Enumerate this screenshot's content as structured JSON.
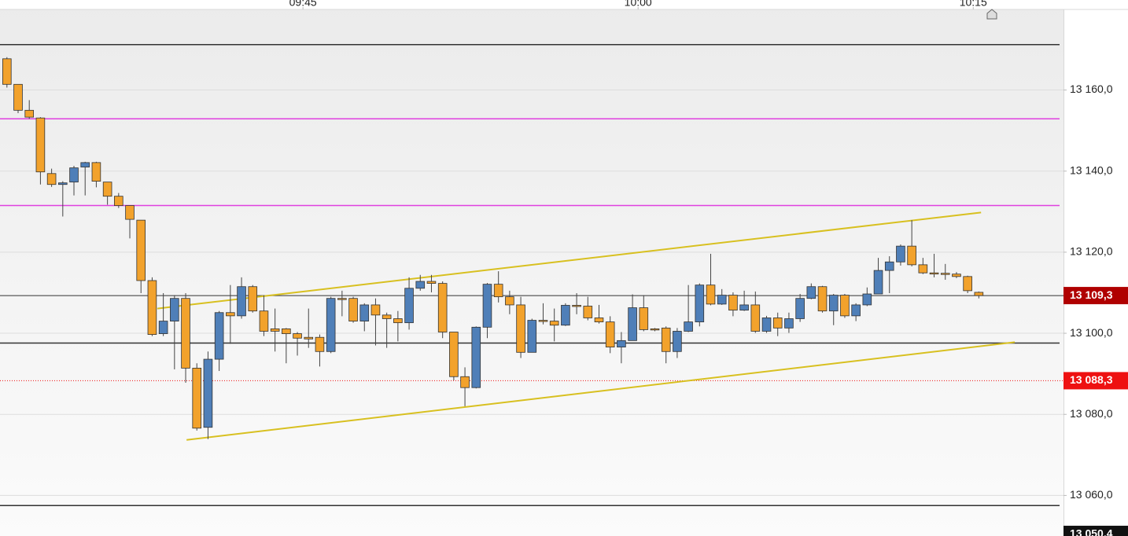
{
  "chart_data": {
    "type": "candlestick",
    "x": [
      571.75,
      572.25,
      572.75,
      573.25,
      573.75,
      574.25,
      574.75,
      575.25,
      575.75,
      576.25,
      576.75,
      577.25,
      577.75,
      578.25,
      578.75,
      579.25,
      579.75,
      580.25,
      580.75,
      581.25,
      581.75,
      582.25,
      582.75,
      583.25,
      583.75,
      584.25,
      584.75,
      585.25,
      585.75,
      586.25,
      586.75,
      587.25,
      587.75,
      588.25,
      588.75,
      589.25,
      589.75,
      590.25,
      590.75,
      591.25,
      591.75,
      592.25,
      592.75,
      593.25,
      593.75,
      594.25,
      594.75,
      595.25,
      595.75,
      596.25,
      596.75,
      597.25,
      597.75,
      598.25,
      598.75,
      599.25,
      599.75,
      600.25,
      600.75,
      601.25,
      601.75,
      602.25,
      602.75,
      603.25,
      603.75,
      604.25,
      604.75,
      605.25,
      605.75,
      606.25,
      606.75,
      607.25,
      607.75,
      608.25,
      608.75,
      609.25,
      609.75,
      610.25,
      610.75,
      611.25,
      611.75,
      612.25,
      612.75,
      613.25,
      613.75,
      614.25,
      614.75,
      615.25
    ],
    "open": [
      13167.7,
      13161.4,
      13155.0,
      13153.1,
      13139.4,
      13136.7,
      13137.3,
      13141.0,
      13142.1,
      13137.3,
      13133.8,
      13131.5,
      13127.9,
      13113.0,
      13099.9,
      13103.0,
      13108.6,
      13091.4,
      13076.8,
      13093.6,
      13105.1,
      13104.3,
      13111.5,
      13105.5,
      13101.1,
      13101.1,
      13099.9,
      13099.0,
      13099.0,
      13095.5,
      13108.6,
      13108.6,
      13103.0,
      13107.0,
      13104.5,
      13103.6,
      13102.6,
      13111.1,
      13112.8,
      13112.3,
      13100.3,
      13089.3,
      13086.6,
      13101.5,
      13112.1,
      13109.0,
      13107.0,
      13095.3,
      13103.2,
      13103.0,
      13102.0,
      13106.9,
      13106.7,
      13103.8,
      13102.8,
      13096.6,
      13098.2,
      13106.3,
      13101.1,
      13101.3,
      13095.5,
      13100.5,
      13102.8,
      13111.9,
      13107.2,
      13109.4,
      13105.7,
      13107.0,
      13100.5,
      13103.8,
      13101.3,
      13103.6,
      13108.6,
      13111.5,
      13105.5,
      13109.4,
      13104.3,
      13107.0,
      13109.7,
      13115.5,
      13117.6,
      13121.5,
      13116.9,
      13114.9,
      13114.8,
      13114.6,
      13114.0,
      13110.1
    ],
    "high": [
      13168.1,
      13161.4,
      13157.5,
      13153.3,
      13140.6,
      13137.5,
      13141.3,
      13142.3,
      13142.3,
      13137.3,
      13134.6,
      13131.5,
      13127.9,
      13113.8,
      13109.9,
      13109.4,
      13109.9,
      13092.6,
      13095.5,
      13105.5,
      13111.9,
      13113.8,
      13111.9,
      13109.4,
      13106.1,
      13101.3,
      13100.3,
      13106.1,
      13099.7,
      13109.0,
      13110.5,
      13109.0,
      13107.4,
      13108.6,
      13105.1,
      13105.5,
      13113.8,
      13114.4,
      13114.4,
      13112.8,
      13100.3,
      13091.6,
      13101.7,
      13112.4,
      13115.3,
      13110.5,
      13109.0,
      13103.6,
      13107.4,
      13106.1,
      13107.4,
      13109.9,
      13109.0,
      13107.0,
      13104.2,
      13100.3,
      13109.6,
      13109.4,
      13101.3,
      13101.7,
      13101.3,
      13111.9,
      13112.3,
      13119.6,
      13110.9,
      13110.1,
      13110.5,
      13110.3,
      13104.3,
      13105.1,
      13105.1,
      13109.7,
      13112.3,
      13111.7,
      13109.7,
      13109.7,
      13107.4,
      13111.3,
      13118.6,
      13119.0,
      13121.9,
      13127.9,
      13118.6,
      13119.6,
      13117.1,
      13115.1,
      13114.2,
      13110.3
    ],
    "low": [
      13160.6,
      13154.3,
      13152.9,
      13136.7,
      13136.1,
      13128.8,
      13134.0,
      13134.0,
      13136.0,
      13131.7,
      13130.9,
      13123.4,
      13109.9,
      13099.3,
      13099.3,
      13091.1,
      13087.8,
      13076.0,
      13073.9,
      13090.7,
      13097.4,
      13103.6,
      13105.1,
      13099.3,
      13095.5,
      13092.6,
      13094.5,
      13096.4,
      13091.8,
      13095.1,
      13104.2,
      13102.6,
      13100.5,
      13097.0,
      13096.4,
      13098.0,
      13100.9,
      13110.5,
      13110.1,
      13098.8,
      13088.4,
      13082.0,
      13086.4,
      13098.8,
      13107.6,
      13104.7,
      13093.9,
      13095.3,
      13102.2,
      13098.0,
      13101.8,
      13104.7,
      13103.2,
      13102.4,
      13095.1,
      13092.6,
      13098.2,
      13100.5,
      13100.5,
      13092.6,
      13093.9,
      13100.3,
      13101.7,
      13106.9,
      13107.0,
      13104.2,
      13105.5,
      13100.1,
      13100.1,
      13099.3,
      13100.1,
      13102.8,
      13108.4,
      13105.1,
      13102.0,
      13103.8,
      13103.0,
      13106.7,
      13109.7,
      13109.9,
      13116.7,
      13116.5,
      13114.6,
      13113.8,
      13113.2,
      13113.6,
      13109.9,
      13108.6
    ],
    "close": [
      13161.4,
      13155.0,
      13153.3,
      13139.8,
      13136.7,
      13137.1,
      13140.8,
      13142.1,
      13137.5,
      13133.8,
      13131.5,
      13128.1,
      13113.0,
      13099.7,
      13103.0,
      13108.6,
      13091.4,
      13076.6,
      13093.6,
      13105.1,
      13104.3,
      13111.5,
      13105.5,
      13100.5,
      13100.5,
      13099.9,
      13098.8,
      13098.6,
      13095.5,
      13108.6,
      13108.6,
      13103.0,
      13107.0,
      13104.5,
      13103.6,
      13102.6,
      13111.1,
      13112.8,
      13112.3,
      13100.3,
      13089.3,
      13086.6,
      13101.5,
      13112.1,
      13109.0,
      13107.0,
      13095.3,
      13103.2,
      13103.0,
      13102.0,
      13106.9,
      13106.7,
      13103.8,
      13102.8,
      13096.6,
      13098.2,
      13106.3,
      13100.9,
      13100.9,
      13095.5,
      13100.5,
      13102.8,
      13111.9,
      13107.2,
      13109.4,
      13105.7,
      13107.0,
      13100.5,
      13103.8,
      13101.3,
      13103.6,
      13108.6,
      13111.5,
      13105.5,
      13109.4,
      13104.3,
      13107.0,
      13109.7,
      13115.5,
      13117.6,
      13121.5,
      13116.9,
      13114.9,
      13114.8,
      13114.6,
      13114.0,
      13110.5,
      13109.3
    ],
    "up_color": "#4f7fb8",
    "down_color": "#f2a22c",
    "xlim": [
      571.44,
      619.04
    ],
    "ylim": [
      13050.0,
      13182.2
    ],
    "xticks": [
      {
        "value": 585,
        "label": "09:45"
      },
      {
        "value": 600,
        "label": "10:00"
      },
      {
        "value": 615,
        "label": "10:15"
      }
    ],
    "yticks": [
      {
        "value": 13060,
        "label": "13 060,0"
      },
      {
        "value": 13080,
        "label": "13 080,0"
      },
      {
        "value": 13100,
        "label": "13 100,0"
      },
      {
        "value": 13120,
        "label": "13 120,0"
      },
      {
        "value": 13140,
        "label": "13 140,0"
      },
      {
        "value": 13160,
        "label": "13 160,0"
      }
    ],
    "grid": true,
    "lines": [
      {
        "value": 13171.2,
        "color": "#333333"
      },
      {
        "value": 13152.9,
        "color": "#e040e0"
      },
      {
        "value": 13131.5,
        "color": "#e040e0"
      },
      {
        "value": 13097.6,
        "color": "#333333"
      },
      {
        "value": 13057.5,
        "color": "#333333"
      }
    ],
    "trendlines": [
      {
        "x": [
          578.48,
          615.35
        ],
        "values": [
          13106.1,
          13129.8
        ],
        "color": "#d8c020"
      },
      {
        "x": [
          579.79,
          616.86
        ],
        "values": [
          13073.7,
          13097.8
        ],
        "color": "#d8c020"
      }
    ],
    "price_labels": [
      {
        "value": 13109.3,
        "label": "13 109,3",
        "color": "#b00000",
        "line": "solid"
      },
      {
        "value": 13088.3,
        "label": "13 088,3",
        "color": "#ee1111",
        "line": "dotted"
      },
      {
        "value": 13050.4,
        "label": "13 050,4",
        "color": "#111111",
        "line": "none"
      }
    ]
  }
}
